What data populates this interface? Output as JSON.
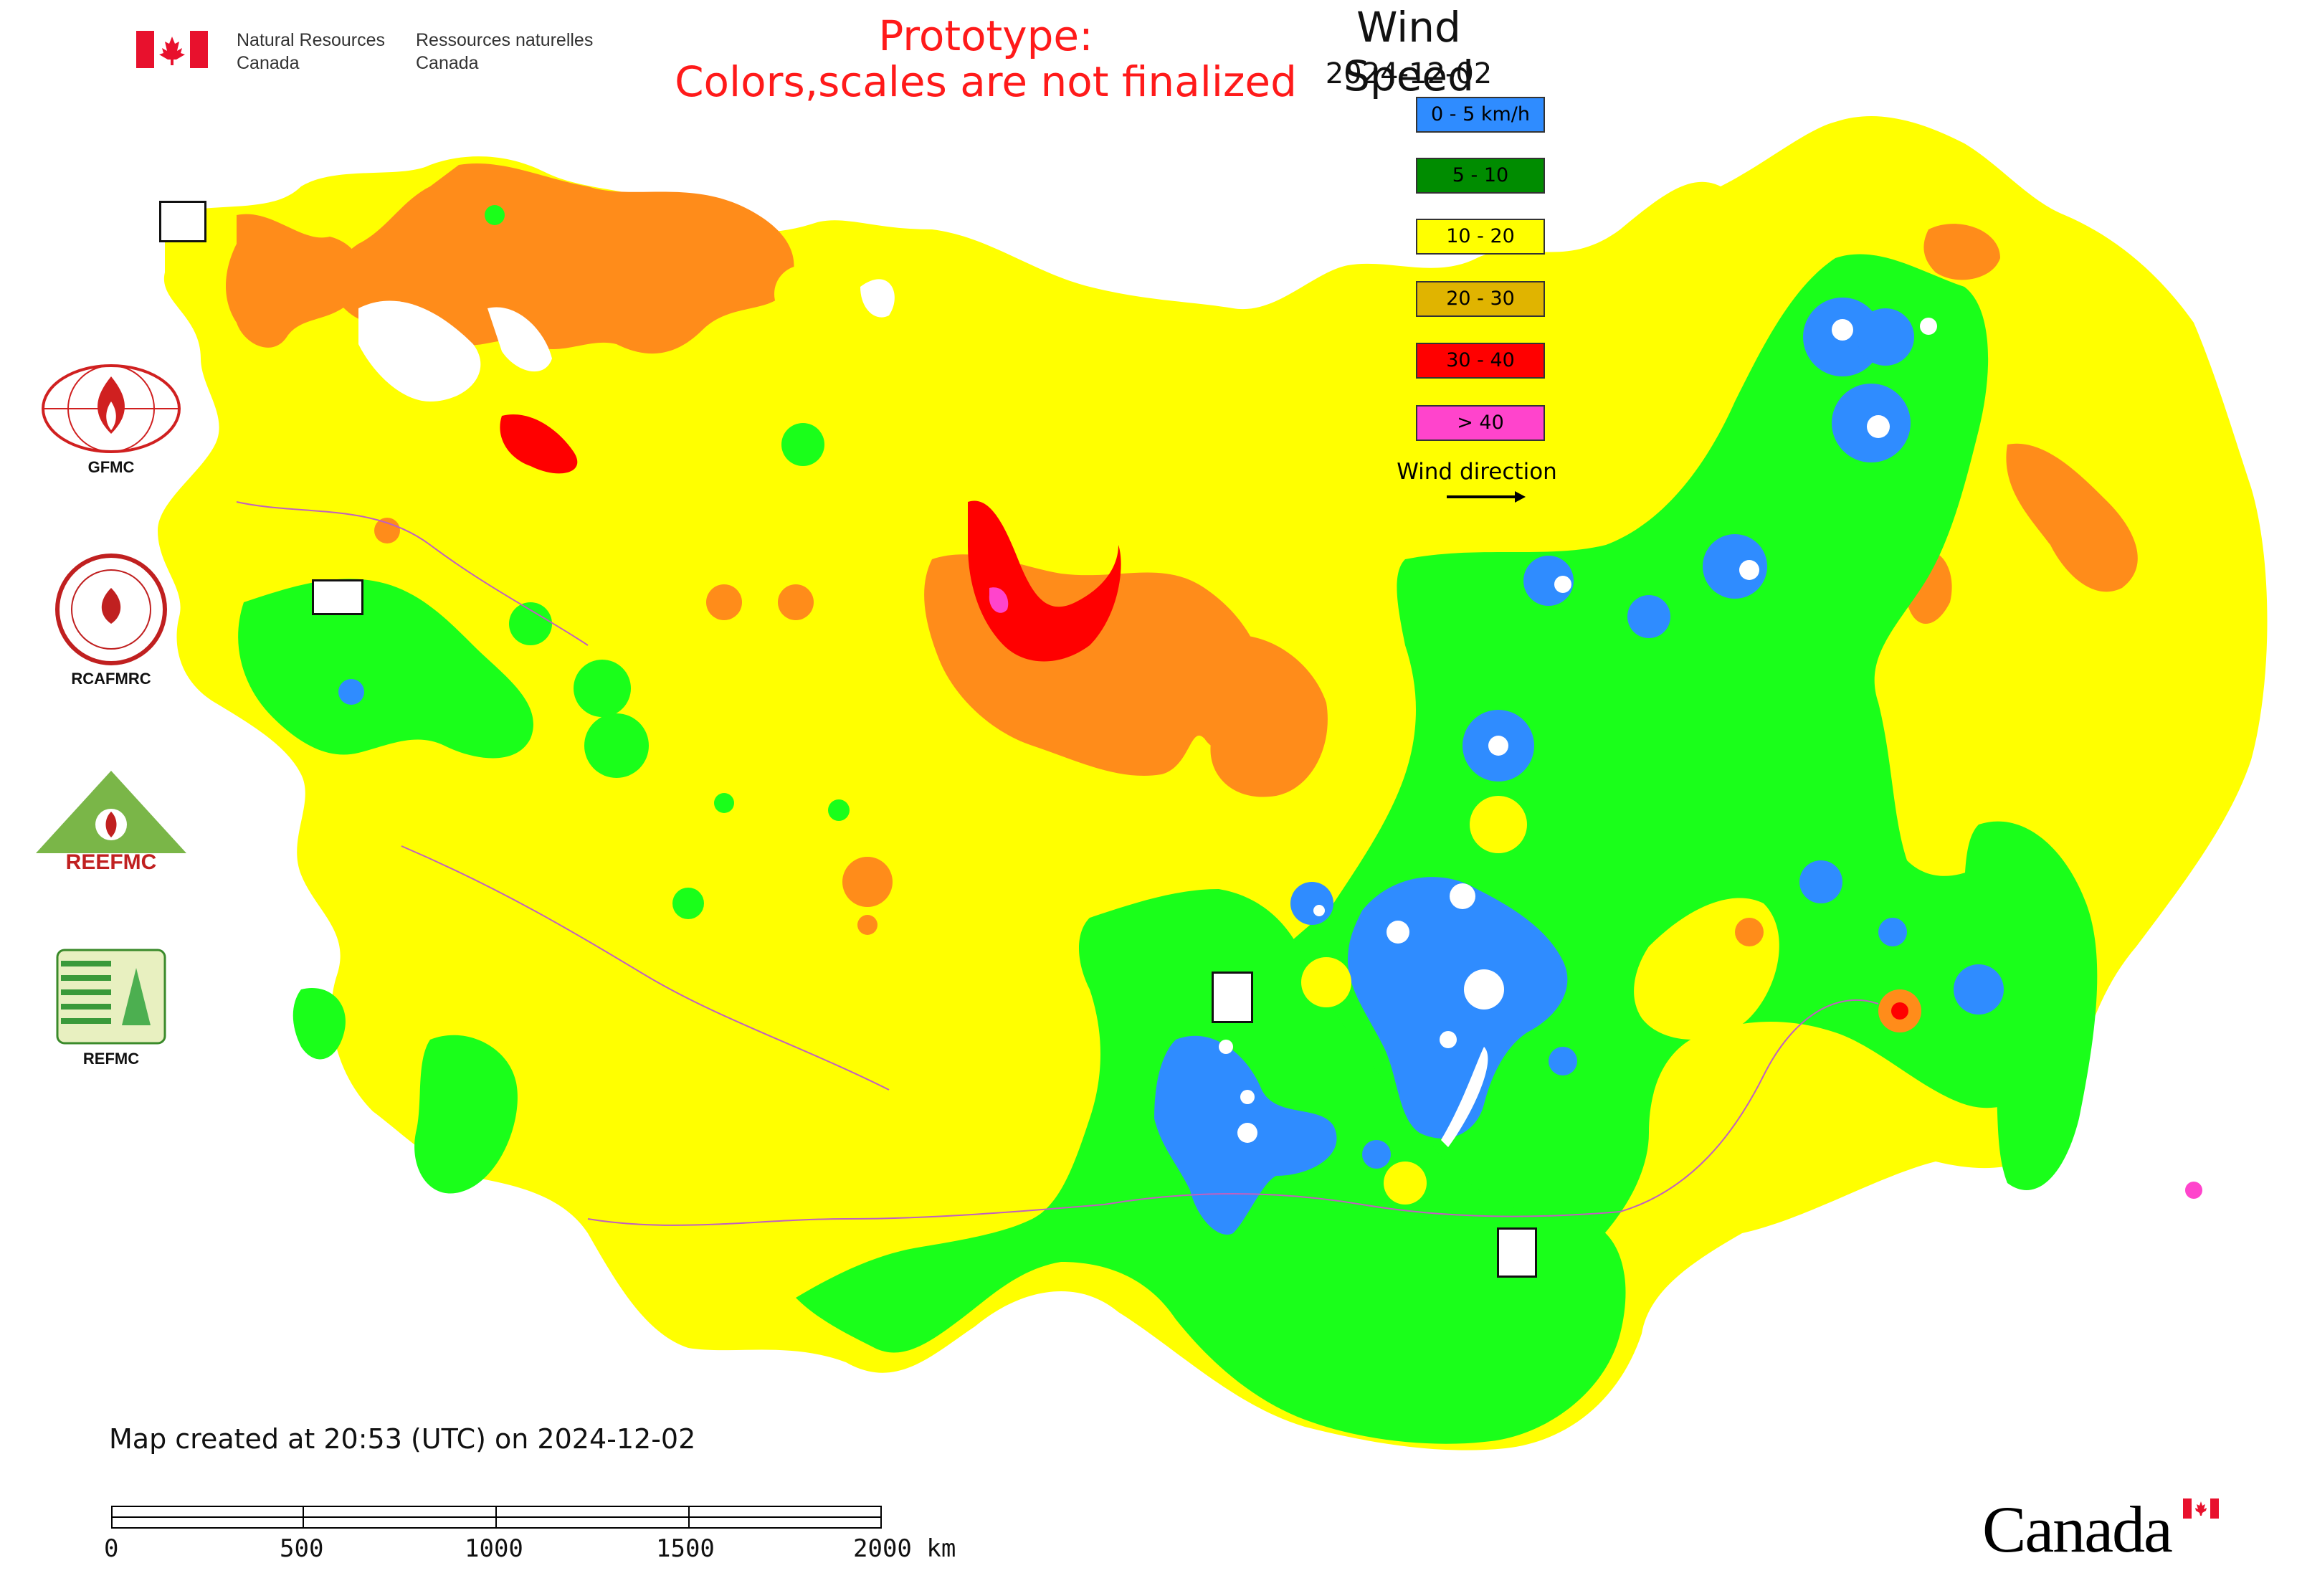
{
  "header": {
    "agency_en_line1": "Natural Resources",
    "agency_en_line2": "Canada",
    "agency_fr_line1": "Ressources naturelles",
    "agency_fr_line2": "Canada",
    "prototype_line1": "Prototype:",
    "prototype_line2": "Colors,scales are not finalized"
  },
  "legend": {
    "title": "Wind Speed",
    "date": "2024-12-02",
    "items": [
      {
        "label": "0 - 5 km/h",
        "color": "#2f8cff"
      },
      {
        "label": "5 - 10",
        "color": "#008c00"
      },
      {
        "label": "10 - 20",
        "color": "#ffff00"
      },
      {
        "label": "20 - 30",
        "color": "#e0b400"
      },
      {
        "label": "30 - 40",
        "color": "#ff0000"
      },
      {
        "label": "> 40",
        "color": "#ff44cc"
      }
    ],
    "wind_direction_label": "Wind direction"
  },
  "map_colors": {
    "calm": "#2f8cff",
    "light": "#1aff1a",
    "moderate": "#ffff00",
    "fresh": "#ff8c1a",
    "strong": "#ff0000",
    "gale": "#ff44cc",
    "border": "#c060c0"
  },
  "side_logos": [
    {
      "label": "GFMC",
      "icon": "fire-globe-icon"
    },
    {
      "label": "RCAFMRC",
      "icon": "fire-seal-icon"
    },
    {
      "label": "",
      "icon": "reefmc-triangle-icon"
    },
    {
      "label": "REFMC",
      "icon": "refmc-sigma-icon"
    }
  ],
  "reefmc_logo_text": "REEFMC",
  "footer": {
    "created": "Map created at 20:53 (UTC) on 2024-12-02",
    "scale_ticks": [
      "0",
      "500",
      "1000",
      "1500",
      "2000 km"
    ],
    "wordmark": "Canada"
  }
}
